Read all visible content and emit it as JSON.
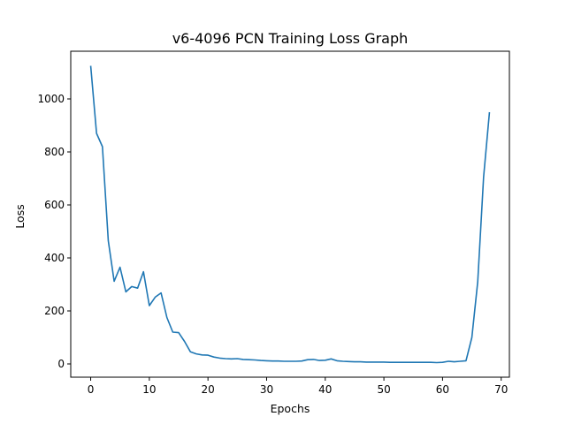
{
  "chart_data": {
    "type": "line",
    "title": "v6-4096 PCN Training Loss Graph",
    "xlabel": "Epochs",
    "ylabel": "Loss",
    "xlim": [
      -3.4,
      71.4
    ],
    "ylim": [
      -50,
      1180
    ],
    "xticks": [
      0,
      10,
      20,
      30,
      40,
      50,
      60,
      70
    ],
    "yticks": [
      0,
      200,
      400,
      600,
      800,
      1000
    ],
    "grid": false,
    "line_color": "#1f77b4",
    "series": [
      {
        "x": [
          0,
          1,
          2,
          3,
          4,
          5,
          6,
          7,
          8,
          9,
          10,
          11,
          12,
          13,
          14,
          15,
          16,
          17,
          18,
          19,
          20,
          21,
          22,
          23,
          24,
          25,
          26,
          27,
          28,
          29,
          30,
          31,
          32,
          33,
          34,
          35,
          36,
          37,
          38,
          39,
          40,
          41,
          42,
          43,
          44,
          45,
          46,
          47,
          48,
          49,
          50,
          51,
          52,
          53,
          54,
          55,
          56,
          57,
          58,
          59,
          60,
          61,
          62,
          63,
          64,
          65,
          66,
          67,
          68
        ],
        "values": [
          1125,
          870,
          820,
          465,
          312,
          365,
          272,
          292,
          286,
          348,
          220,
          252,
          268,
          175,
          120,
          118,
          85,
          46,
          38,
          34,
          33,
          26,
          22,
          20,
          19,
          20,
          17,
          16,
          15,
          13,
          12,
          11,
          11,
          10,
          10,
          10,
          11,
          16,
          17,
          13,
          14,
          19,
          12,
          10,
          9,
          8,
          8,
          7,
          7,
          7,
          7,
          6,
          6,
          6,
          6,
          6,
          6,
          6,
          6,
          5,
          6,
          10,
          8,
          10,
          12,
          100,
          310,
          705,
          950
        ]
      }
    ]
  }
}
